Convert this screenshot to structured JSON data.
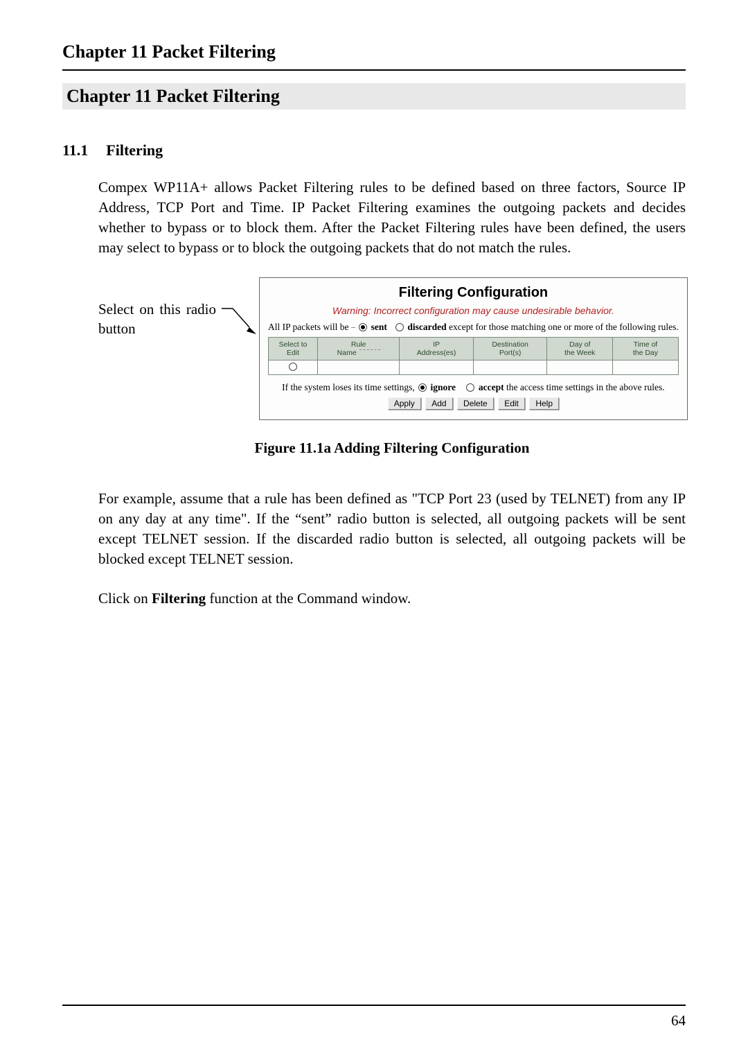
{
  "running_head": "Chapter 11    Packet Filtering",
  "chapter_title": "Chapter 11      Packet Filtering",
  "section": {
    "number": "11.1",
    "title": "Filtering"
  },
  "paragraph1": "Compex WP11A+ allows Packet Filtering rules to be defined based on three factors, Source IP Address, TCP Port and Time. IP Packet Filtering examines the outgoing packets and decides whether to bypass or to block them. After the Packet Filtering rules have been defined, the users may select to bypass or to block the outgoing packets that do not match the rules.",
  "callout_text": "Select on this radio button",
  "filtering_config": {
    "title": "Filtering Configuration",
    "warning": "Warning: Incorrect configuration may cause undesirable behavior.",
    "line1_prefix": "All IP packets will be ",
    "opt_sent": "sent",
    "opt_discarded": "discarded",
    "line1_suffix": " except for those matching one or more of the following rules.",
    "columns": [
      "Select to\nEdit",
      "Rule\nName",
      "IP\nAddress(es)",
      "Destination\nPort(s)",
      "Day of\nthe Week",
      "Time of\nthe Day"
    ],
    "line2_prefix": "If the system loses its time settings, ",
    "opt_ignore": "ignore",
    "opt_accept": "accept",
    "line2_suffix": " the access time settings in the above rules.",
    "buttons": [
      "Apply",
      "Add",
      "Delete",
      "Edit",
      "Help"
    ],
    "colors": {
      "header_bg": "#d0d8d0",
      "header_fg": "#2a4a2a",
      "border": "#7a8a7a",
      "warning": "#b02020",
      "btn_bg": "#e6e6e6"
    }
  },
  "figure_caption": "Figure 11.1a      Adding Filtering Configuration",
  "paragraph2": "For example, assume that a rule has been defined as \"TCP Port 23 (used by TELNET) from any IP on any day at any time\". If the “sent” radio button is selected, all outgoing packets will be sent except TELNET session. If the discarded radio button is selected, all outgoing packets will be blocked except TELNET session.",
  "paragraph3_pre": "Click on ",
  "paragraph3_bold": "Filtering",
  "paragraph3_post": " function at the Command window.",
  "page_number": "64"
}
